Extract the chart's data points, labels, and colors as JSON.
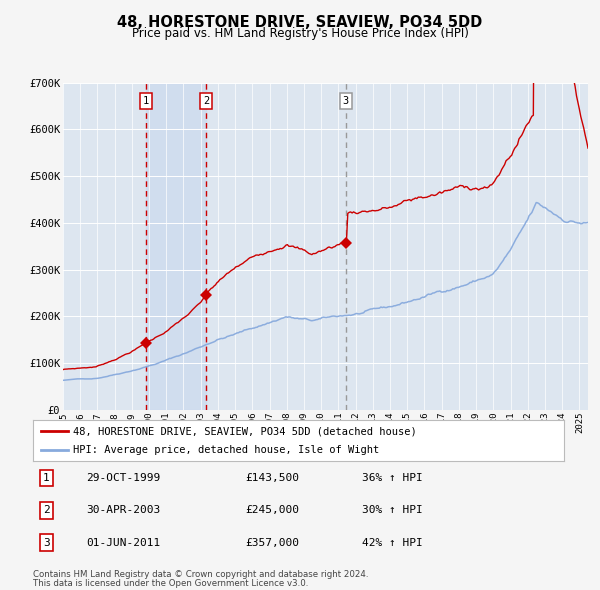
{
  "title": "48, HORESTONE DRIVE, SEAVIEW, PO34 5DD",
  "subtitle": "Price paid vs. HM Land Registry's House Price Index (HPI)",
  "legend_line1": "48, HORESTONE DRIVE, SEAVIEW, PO34 5DD (detached house)",
  "legend_line2": "HPI: Average price, detached house, Isle of Wight",
  "table_rows": [
    [
      "1",
      "29-OCT-1999",
      "£143,500",
      "36% ↑ HPI"
    ],
    [
      "2",
      "30-APR-2003",
      "£245,000",
      "30% ↑ HPI"
    ],
    [
      "3",
      "01-JUN-2011",
      "£357,000",
      "42% ↑ HPI"
    ]
  ],
  "footnote1": "Contains HM Land Registry data © Crown copyright and database right 2024.",
  "footnote2": "This data is licensed under the Open Government Licence v3.0.",
  "fig_bg": "#f5f5f5",
  "plot_bg_color": "#dde6f0",
  "grid_color": "#ffffff",
  "red_line_color": "#cc0000",
  "blue_line_color": "#88aadd",
  "dashed_red": "#cc0000",
  "dashed_gray": "#999999",
  "sale_marker_color": "#cc0000",
  "ylim": [
    0,
    700000
  ],
  "yticks": [
    0,
    100000,
    200000,
    300000,
    400000,
    500000,
    600000,
    700000
  ],
  "ytick_labels": [
    "£0",
    "£100K",
    "£200K",
    "£300K",
    "£400K",
    "£500K",
    "£600K",
    "£700K"
  ],
  "sale1_x": 1999.83,
  "sale1_y": 143500,
  "sale2_x": 2003.33,
  "sale2_y": 245000,
  "sale3_x": 2011.42,
  "sale3_y": 357000,
  "vline1_x": 1999.83,
  "vline2_x": 2003.33,
  "vline3_x": 2011.42,
  "shade_x1": 1999.83,
  "shade_x2": 2003.33,
  "xmin": 1995.0,
  "xmax": 2025.5
}
